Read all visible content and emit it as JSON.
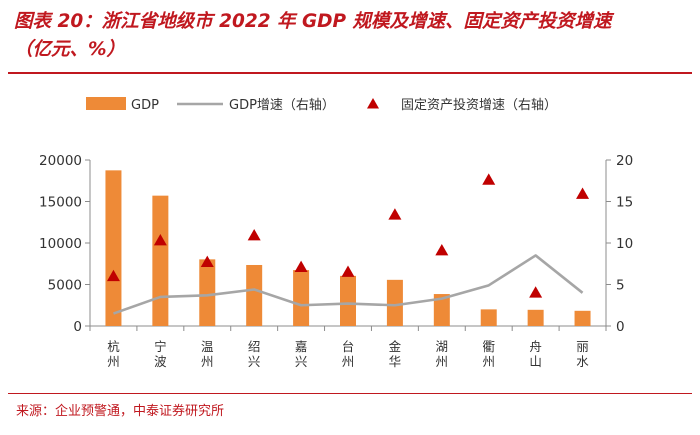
{
  "title_line1": "图表 20：浙江省地级市 2022 年 GDP 规模及增速、固定资产投资增速",
  "title_line2": "（亿元、%）",
  "source": "来源：企业预警通，中泰证券研究所",
  "colors": {
    "bar": "#ee8a37",
    "line": "#a6a6a6",
    "marker": "#c00000",
    "accent": "#c0181f"
  },
  "chart_data": {
    "type": "bar",
    "categories": [
      "杭州",
      "宁波",
      "温州",
      "绍兴",
      "嘉兴",
      "台州",
      "金华",
      "湖州",
      "衢州",
      "舟山",
      "丽水"
    ],
    "y_left_lim": [
      0,
      20000
    ],
    "y_left_ticks": [
      "0",
      "5000",
      "10000",
      "15000",
      "20000"
    ],
    "y_right_lim": [
      0,
      20
    ],
    "y_right_ticks": [
      "0",
      "5",
      "10",
      "15",
      "20"
    ],
    "grid": false,
    "legend_position": "top",
    "series": [
      {
        "name": "GDP",
        "type": "bar",
        "axis": "left",
        "values": [
          18753,
          15704,
          8030,
          7351,
          6739,
          6040,
          5562,
          3850,
          2003,
          1951,
          1831
        ]
      },
      {
        "name": "GDP增速（右轴）",
        "type": "line",
        "axis": "right",
        "values": [
          1.5,
          3.5,
          3.7,
          4.4,
          2.5,
          2.7,
          2.5,
          3.3,
          4.9,
          8.5,
          4.0
        ]
      },
      {
        "name": "固定资产投资增速（右轴）",
        "type": "scatter",
        "axis": "right",
        "values": [
          6.0,
          10.3,
          7.7,
          10.9,
          7.1,
          6.5,
          13.4,
          9.1,
          17.6,
          4.0,
          15.9
        ]
      }
    ]
  }
}
